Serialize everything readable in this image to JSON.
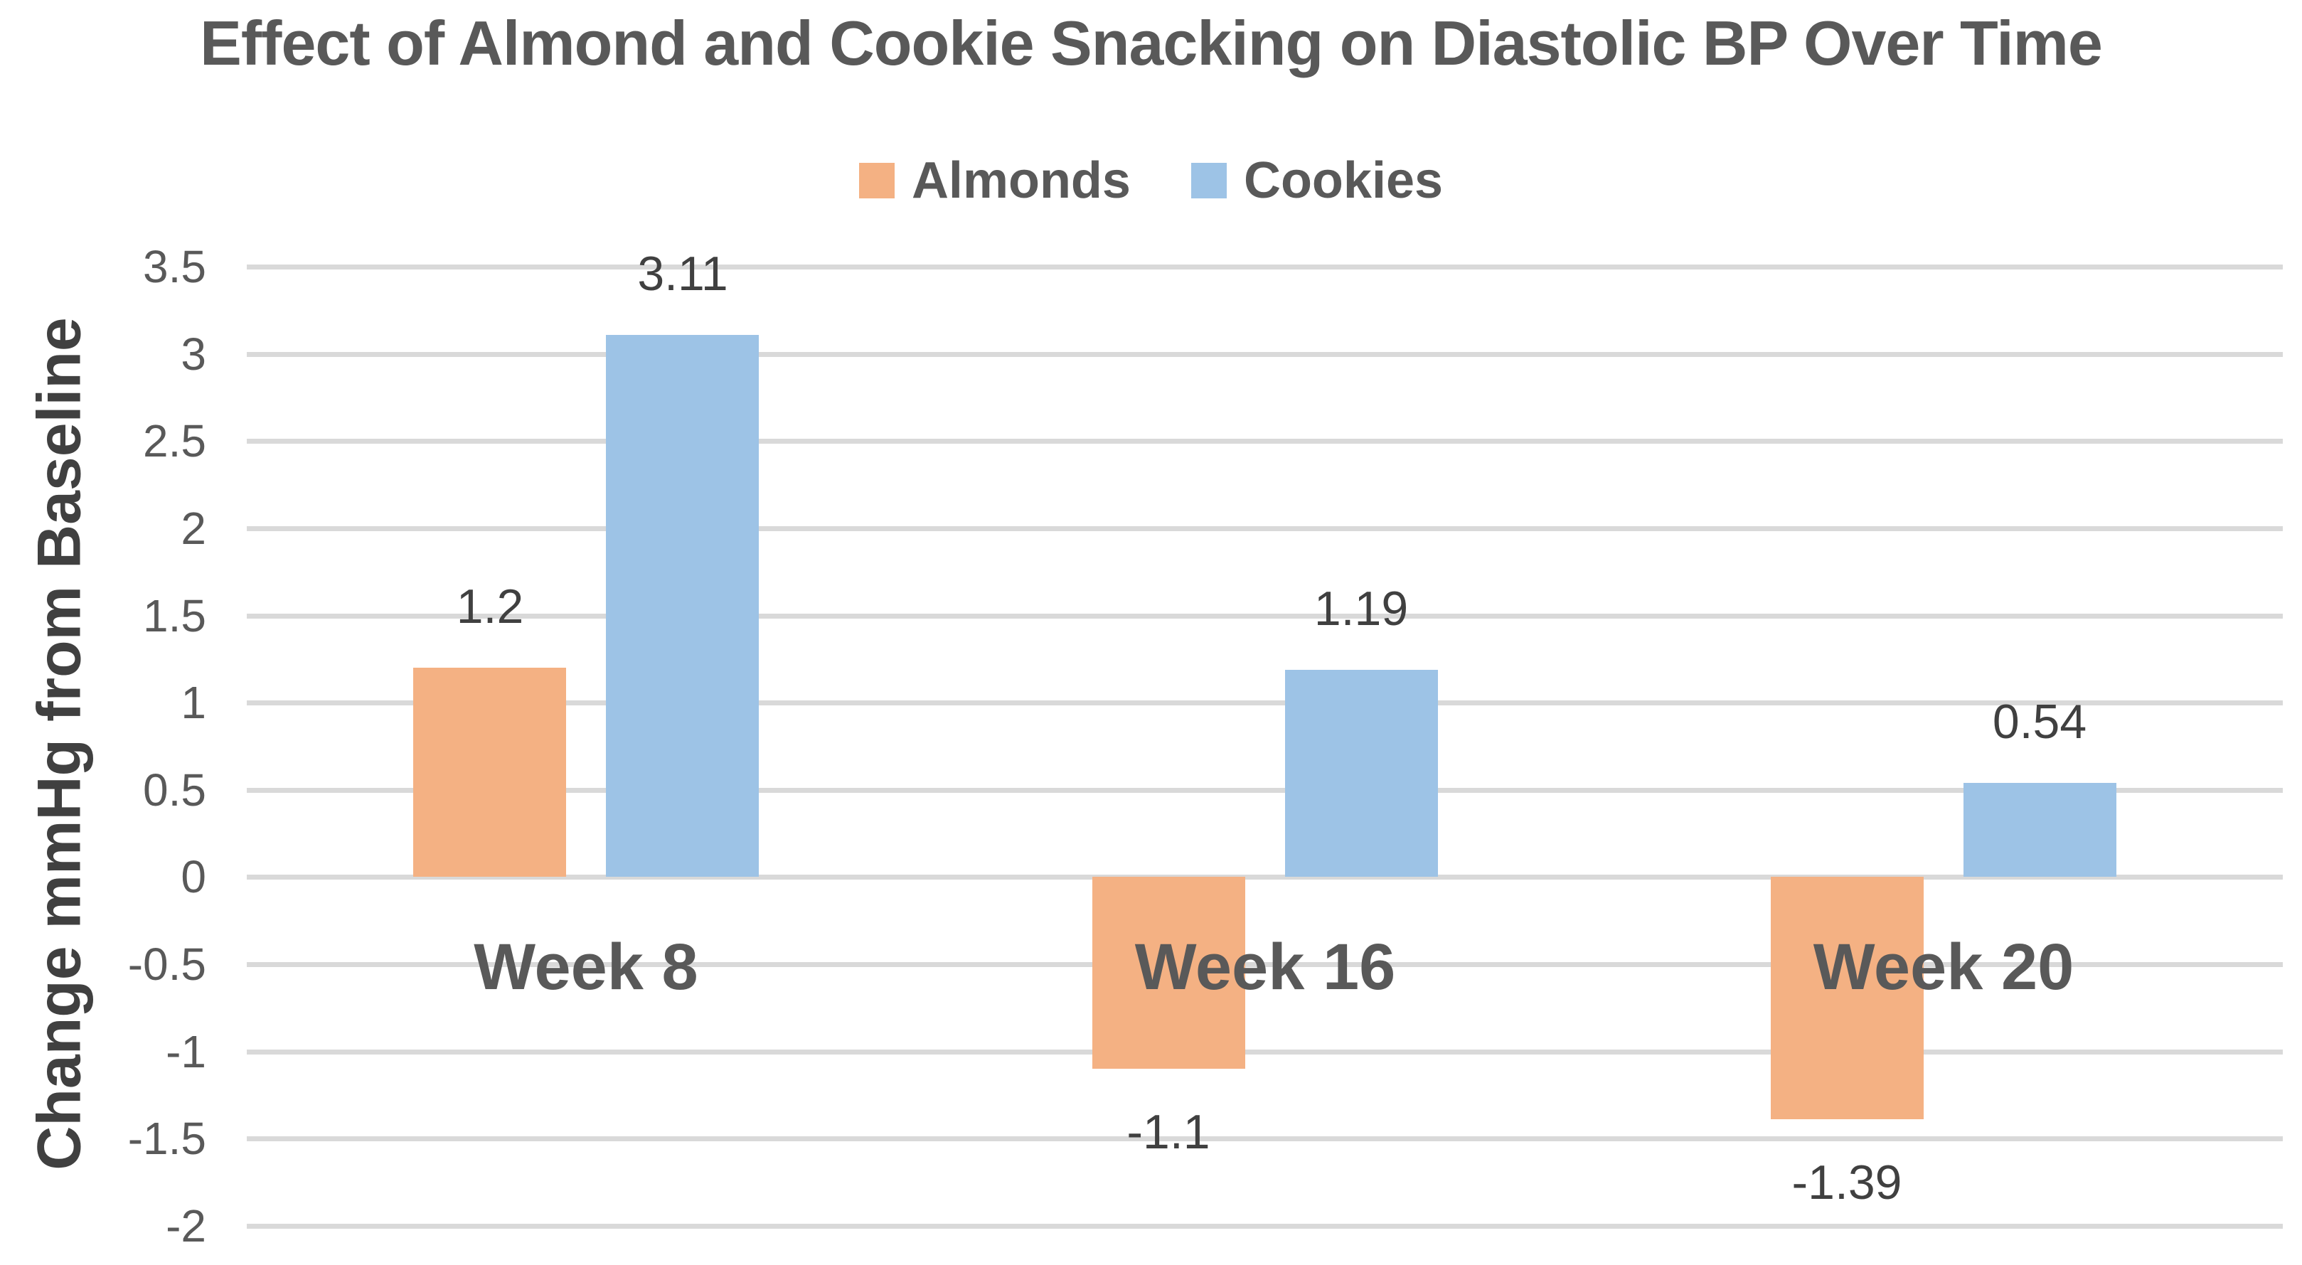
{
  "title": "Effect of Almond and Cookie Snacking on Diastolic BP Over Time",
  "y_axis_title": "Change mmHg from Baseline",
  "colors": {
    "almonds": "#F4B183",
    "cookies": "#9DC3E6",
    "gridline": "#D9D9D9",
    "background": "#FFFFFF",
    "text_primary": "#595959",
    "text_dark": "#404040"
  },
  "chart_data": {
    "type": "bar",
    "title": "Effect of Almond and Cookie Snacking on Diastolic BP Over Time",
    "categories": [
      "Week 8",
      "Week 16",
      "Week 20"
    ],
    "series": [
      {
        "name": "Almonds",
        "color": "#F4B183",
        "values": [
          1.2,
          -1.1,
          -1.39
        ]
      },
      {
        "name": "Cookies",
        "color": "#9DC3E6",
        "values": [
          3.11,
          1.19,
          0.54
        ]
      }
    ],
    "data_labels": [
      [
        "1.2",
        "-1.1",
        "-1.39"
      ],
      [
        "3.11",
        "1.19",
        "0.54"
      ]
    ],
    "xlabel": "",
    "ylabel": "Change mmHg from Baseline",
    "ylim": [
      -2,
      3.5
    ],
    "ytick_step": 0.5,
    "ytick_labels": [
      "3.5",
      "3",
      "2.5",
      "2",
      "1.5",
      "1",
      "0.5",
      "0",
      "-0.5",
      "-1",
      "-1.5",
      "-2"
    ],
    "grid": true,
    "legend_position": "top-center",
    "bar_labels_position": "outside-end"
  }
}
